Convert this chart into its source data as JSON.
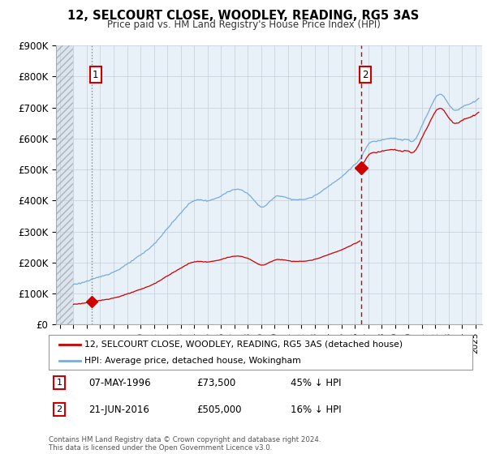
{
  "title": "12, SELCOURT CLOSE, WOODLEY, READING, RG5 3AS",
  "subtitle": "Price paid vs. HM Land Registry's House Price Index (HPI)",
  "ylim": [
    0,
    900000
  ],
  "yticks": [
    0,
    100000,
    200000,
    300000,
    400000,
    500000,
    600000,
    700000,
    800000,
    900000
  ],
  "ytick_labels": [
    "£0",
    "£100K",
    "£200K",
    "£300K",
    "£400K",
    "£500K",
    "£600K",
    "£700K",
    "£800K",
    "£900K"
  ],
  "xlim_start": 1993.7,
  "xlim_end": 2025.5,
  "sale1_date": 1996.35,
  "sale1_price": 73500,
  "sale1_label": "1",
  "sale2_date": 2016.47,
  "sale2_price": 505000,
  "sale2_label": "2",
  "annotation1": [
    "1",
    "07-MAY-1996",
    "£73,500",
    "45% ↓ HPI"
  ],
  "annotation2": [
    "2",
    "21-JUN-2016",
    "£505,000",
    "16% ↓ HPI"
  ],
  "legend_line1": "12, SELCOURT CLOSE, WOODLEY, READING, RG5 3AS (detached house)",
  "legend_line2": "HPI: Average price, detached house, Wokingham",
  "footer": "Contains HM Land Registry data © Crown copyright and database right 2024.\nThis data is licensed under the Open Government Licence v3.0.",
  "line_color": "#cc0000",
  "hpi_color": "#7aabdb",
  "hatch_color": "#cccccc",
  "bg_color": "#e8f0f8",
  "grid_color": "#c8d4e0",
  "marker_color": "#cc0000",
  "sale1_vline_color": "#999999",
  "sale2_vline_color": "#cc0000"
}
